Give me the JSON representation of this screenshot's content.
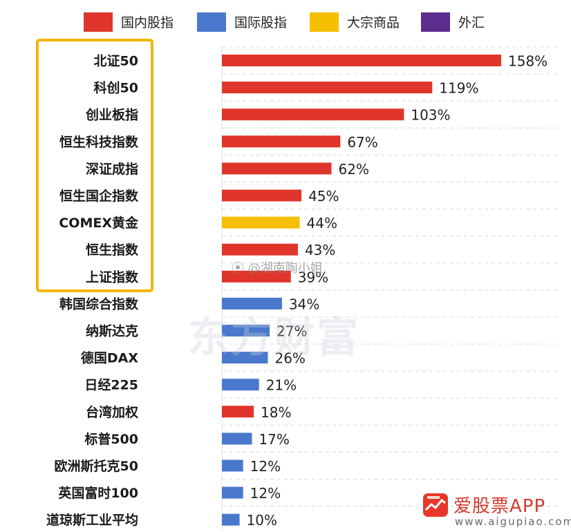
{
  "legend": [
    {
      "label": "国内股指",
      "color": "#e0352b"
    },
    {
      "label": "国际股指",
      "color": "#4a78cc"
    },
    {
      "label": "大宗商品",
      "color": "#f6c000"
    },
    {
      "label": "外汇",
      "color": "#5b2d8e"
    }
  ],
  "chart_data": {
    "type": "bar",
    "orientation": "horizontal",
    "categories": [
      "北证50",
      "科创50",
      "创业板指",
      "恒生科技指数",
      "深证成指",
      "恒生国企指数",
      "COMEX黄金",
      "恒生指数",
      "上证指数",
      "韩国综合指数",
      "纳斯达克",
      "德国DAX",
      "日经225",
      "台湾加权",
      "标普500",
      "欧洲斯托克50",
      "英国富时100",
      "道琼斯工业平均"
    ],
    "values": [
      158,
      119,
      103,
      67,
      62,
      45,
      44,
      43,
      39,
      34,
      27,
      26,
      21,
      18,
      17,
      12,
      12,
      10
    ],
    "value_labels": [
      "158%",
      "119%",
      "103%",
      "67%",
      "62%",
      "45%",
      "44%",
      "43%",
      "39%",
      "34%",
      "27%",
      "26%",
      "21%",
      "18%",
      "17%",
      "12%",
      "12%",
      "10%"
    ],
    "groups": [
      "国内股指",
      "国内股指",
      "国内股指",
      "国内股指",
      "国内股指",
      "国内股指",
      "大宗商品",
      "国内股指",
      "国内股指",
      "国际股指",
      "国际股指",
      "国际股指",
      "国际股指",
      "国内股指",
      "国际股指",
      "国际股指",
      "国际股指",
      "国际股指"
    ],
    "highlight_count": 9,
    "highlight_color": "#f5b400",
    "xlim": [
      0,
      158
    ],
    "grid": true
  },
  "watermarks": {
    "weibo": "@湖南陶小姐",
    "center": "东方财富"
  },
  "brand": {
    "name": "爱股票APP",
    "url": "www.aigupiao.com",
    "icon": "stock-chart-icon"
  }
}
